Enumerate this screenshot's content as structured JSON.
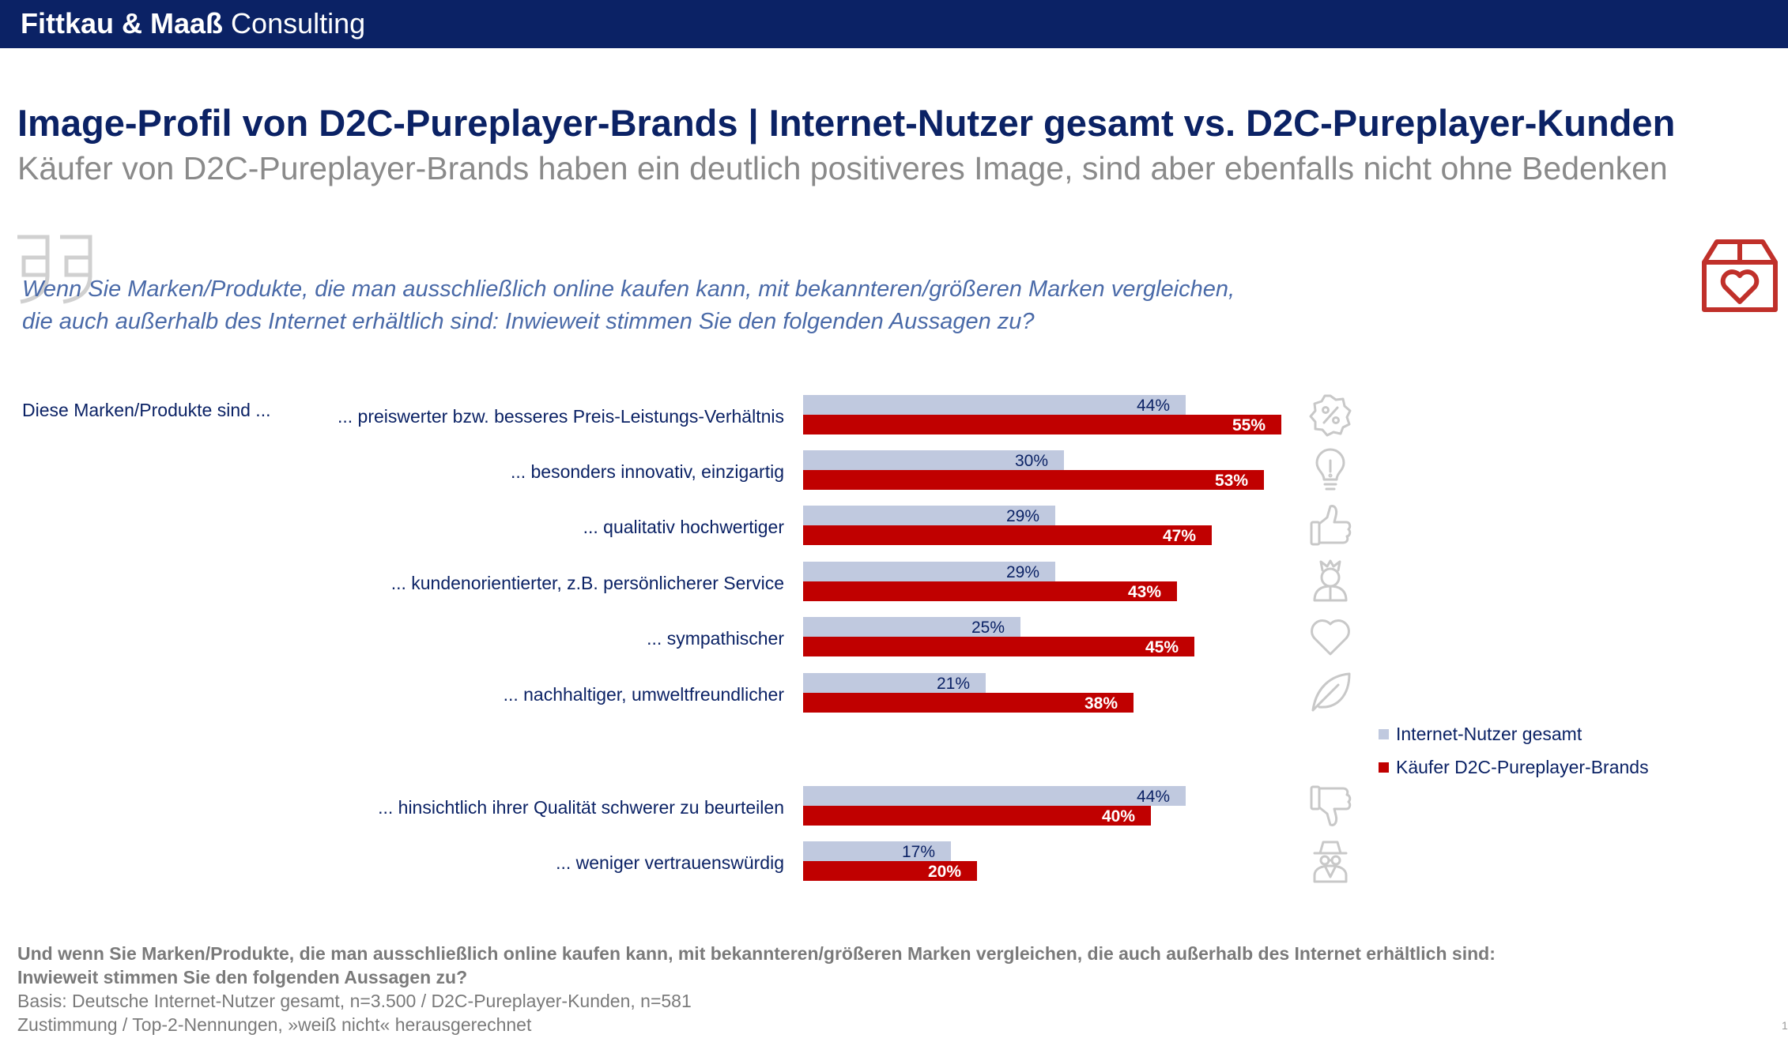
{
  "header": {
    "brand_bold": "Fittkau & Maaß",
    "brand_light": "Consulting"
  },
  "title": "Image-Profil von D2C-Pureplayer-Brands | Internet-Nutzer gesamt vs. D2C-Pureplayer-Kunden",
  "subtitle": "Käufer von D2C-Pureplayer-Brands haben ein deutlich positiveres Image, sind aber ebenfalls nicht ohne Bedenken",
  "question": {
    "line1": "Wenn Sie Marken/Produkte, die man ausschließlich online kaufen kann, mit bekannteren/größeren Marken vergleichen,",
    "line2": "die auch außerhalb des Internet erhältlich sind: Inwieweit stimmen Sie den folgenden Aussagen zu?"
  },
  "lead_label": "Diese Marken/Produkte sind ...",
  "colors": {
    "navy": "#0b2265",
    "series_gray": "#c0c9df",
    "series_red": "#c00000",
    "icon_gray": "#c8c8c8",
    "icon_red": "#c0302a"
  },
  "chart_data": {
    "type": "bar",
    "orientation": "horizontal",
    "value_unit": "%",
    "xlim": [
      0,
      100
    ],
    "grid": false,
    "legend_position": "right",
    "categories": [
      "... preiswerter bzw. besseres Preis-Leistungs-Verhältnis",
      "... besonders innovativ, einzigartig",
      "... qualitativ hochwertiger",
      "... kundenorientierter, z.B. persönlicherer Service",
      "... sympathischer",
      "... nachhaltiger, umweltfreundlicher",
      "... hinsichtlich ihrer Qualität schwerer zu beurteilen",
      "... weniger vertrauenswürdig"
    ],
    "category_icons": [
      "percent-badge-icon",
      "lightbulb-icon",
      "thumbs-up-icon",
      "service-person-icon",
      "heart-icon",
      "leaf-icon",
      "thumbs-down-icon",
      "spy-icon"
    ],
    "series": [
      {
        "name": "Internet-Nutzer gesamt",
        "color": "#c0c9df",
        "values": [
          44,
          30,
          29,
          29,
          25,
          21,
          44,
          17
        ]
      },
      {
        "name": "Käufer D2C-Pureplayer-Brands",
        "color": "#c00000",
        "values": [
          55,
          53,
          47,
          43,
          45,
          38,
          40,
          20
        ]
      }
    ]
  },
  "footer": {
    "q1": "Und wenn Sie Marken/Produkte, die man ausschließlich online kaufen kann, mit bekannteren/größeren Marken vergleichen, die auch außerhalb des Internet erhältlich sind:",
    "q2": "Inwieweit stimmen Sie den folgenden Aussagen zu?",
    "basis": "Basis: Deutsche Internet-Nutzer gesamt, n=3.500 / D2C-Pureplayer-Kunden, n=581",
    "note": "Zustimmung / Top-2-Nennungen, »weiß nicht« herausgerechnet"
  },
  "page_number": "1"
}
